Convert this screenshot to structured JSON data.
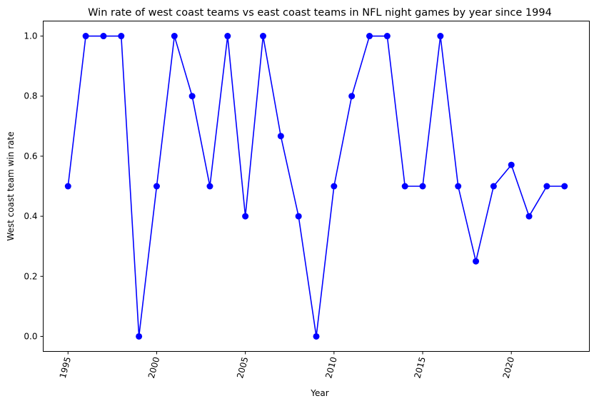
{
  "chart_data": {
    "type": "line",
    "title": "Win rate of west coast teams vs east coast teams in NFL night games by year since 1994",
    "xlabel": "Year",
    "ylabel": "West coast team win rate",
    "xlim": [
      1993.6,
      2024.4
    ],
    "ylim": [
      -0.05,
      1.05
    ],
    "x_ticks": [
      1995,
      2000,
      2005,
      2010,
      2015,
      2020
    ],
    "y_ticks": [
      "0.0",
      "0.2",
      "0.4",
      "0.6",
      "0.8",
      "1.0"
    ],
    "x_tick_rotation": "rotated about 75 degrees",
    "grid": false,
    "legend": "none",
    "line_color": "#0000ff",
    "marker": "circle",
    "series": [
      {
        "x": [
          1995,
          1996,
          1997,
          1998,
          1999,
          2000,
          2001,
          2002,
          2003,
          2004,
          2005,
          2006,
          2007,
          2008,
          2009,
          2010,
          2011,
          2012,
          2013,
          2014,
          2015,
          2016,
          2017,
          2018,
          2019,
          2020,
          2021,
          2022,
          2023
        ],
        "y": [
          0.5,
          1.0,
          1.0,
          1.0,
          0.0,
          0.5,
          1.0,
          0.8,
          0.5,
          1.0,
          0.4,
          1.0,
          0.667,
          0.4,
          0.0,
          0.5,
          0.8,
          1.0,
          1.0,
          0.5,
          0.5,
          1.0,
          0.5,
          0.25,
          0.5,
          0.571,
          0.4,
          0.5,
          0.5
        ]
      }
    ]
  }
}
